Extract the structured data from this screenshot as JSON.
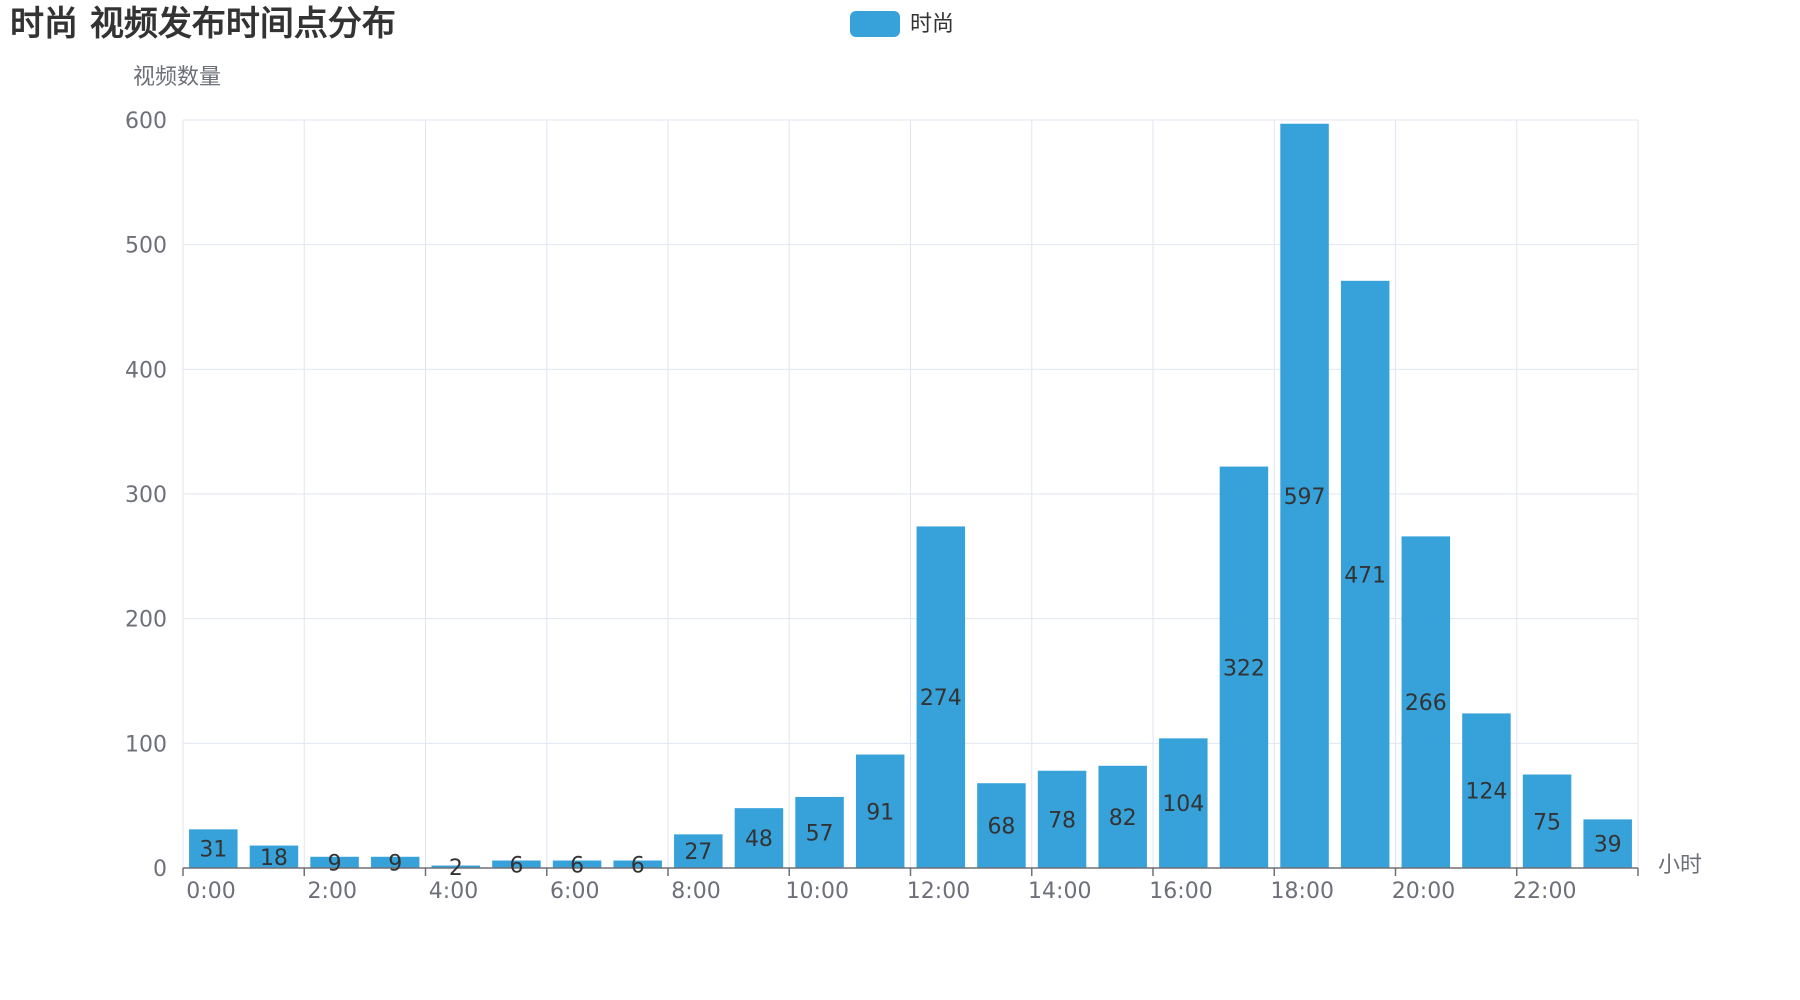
{
  "colors": {
    "bar": "#37a2da",
    "grid": "#e0e6f1",
    "axis": "#6e7079",
    "title": "#333333",
    "label": "#333333"
  },
  "chart_data": {
    "type": "bar",
    "title": "时尚 视频发布时间点分布",
    "legend": {
      "items": [
        "时尚"
      ],
      "position": "top-center"
    },
    "xlabel": "小时",
    "ylabel": "视频数量",
    "ylim": [
      0,
      600
    ],
    "y_ticks": [
      0,
      100,
      200,
      300,
      400,
      500,
      600
    ],
    "grid": true,
    "categories": [
      "0:00",
      "1:00",
      "2:00",
      "3:00",
      "4:00",
      "5:00",
      "6:00",
      "7:00",
      "8:00",
      "9:00",
      "10:00",
      "11:00",
      "12:00",
      "13:00",
      "14:00",
      "15:00",
      "16:00",
      "17:00",
      "18:00",
      "19:00",
      "20:00",
      "21:00",
      "22:00",
      "23:00"
    ],
    "x_tick_labels": [
      "0:00",
      "2:00",
      "4:00",
      "6:00",
      "8:00",
      "10:00",
      "12:00",
      "14:00",
      "16:00",
      "18:00",
      "20:00",
      "22:00"
    ],
    "series": [
      {
        "name": "时尚",
        "values": [
          31,
          18,
          9,
          9,
          2,
          6,
          6,
          6,
          27,
          48,
          57,
          91,
          274,
          68,
          78,
          82,
          104,
          322,
          597,
          471,
          266,
          124,
          75,
          39
        ]
      }
    ]
  }
}
